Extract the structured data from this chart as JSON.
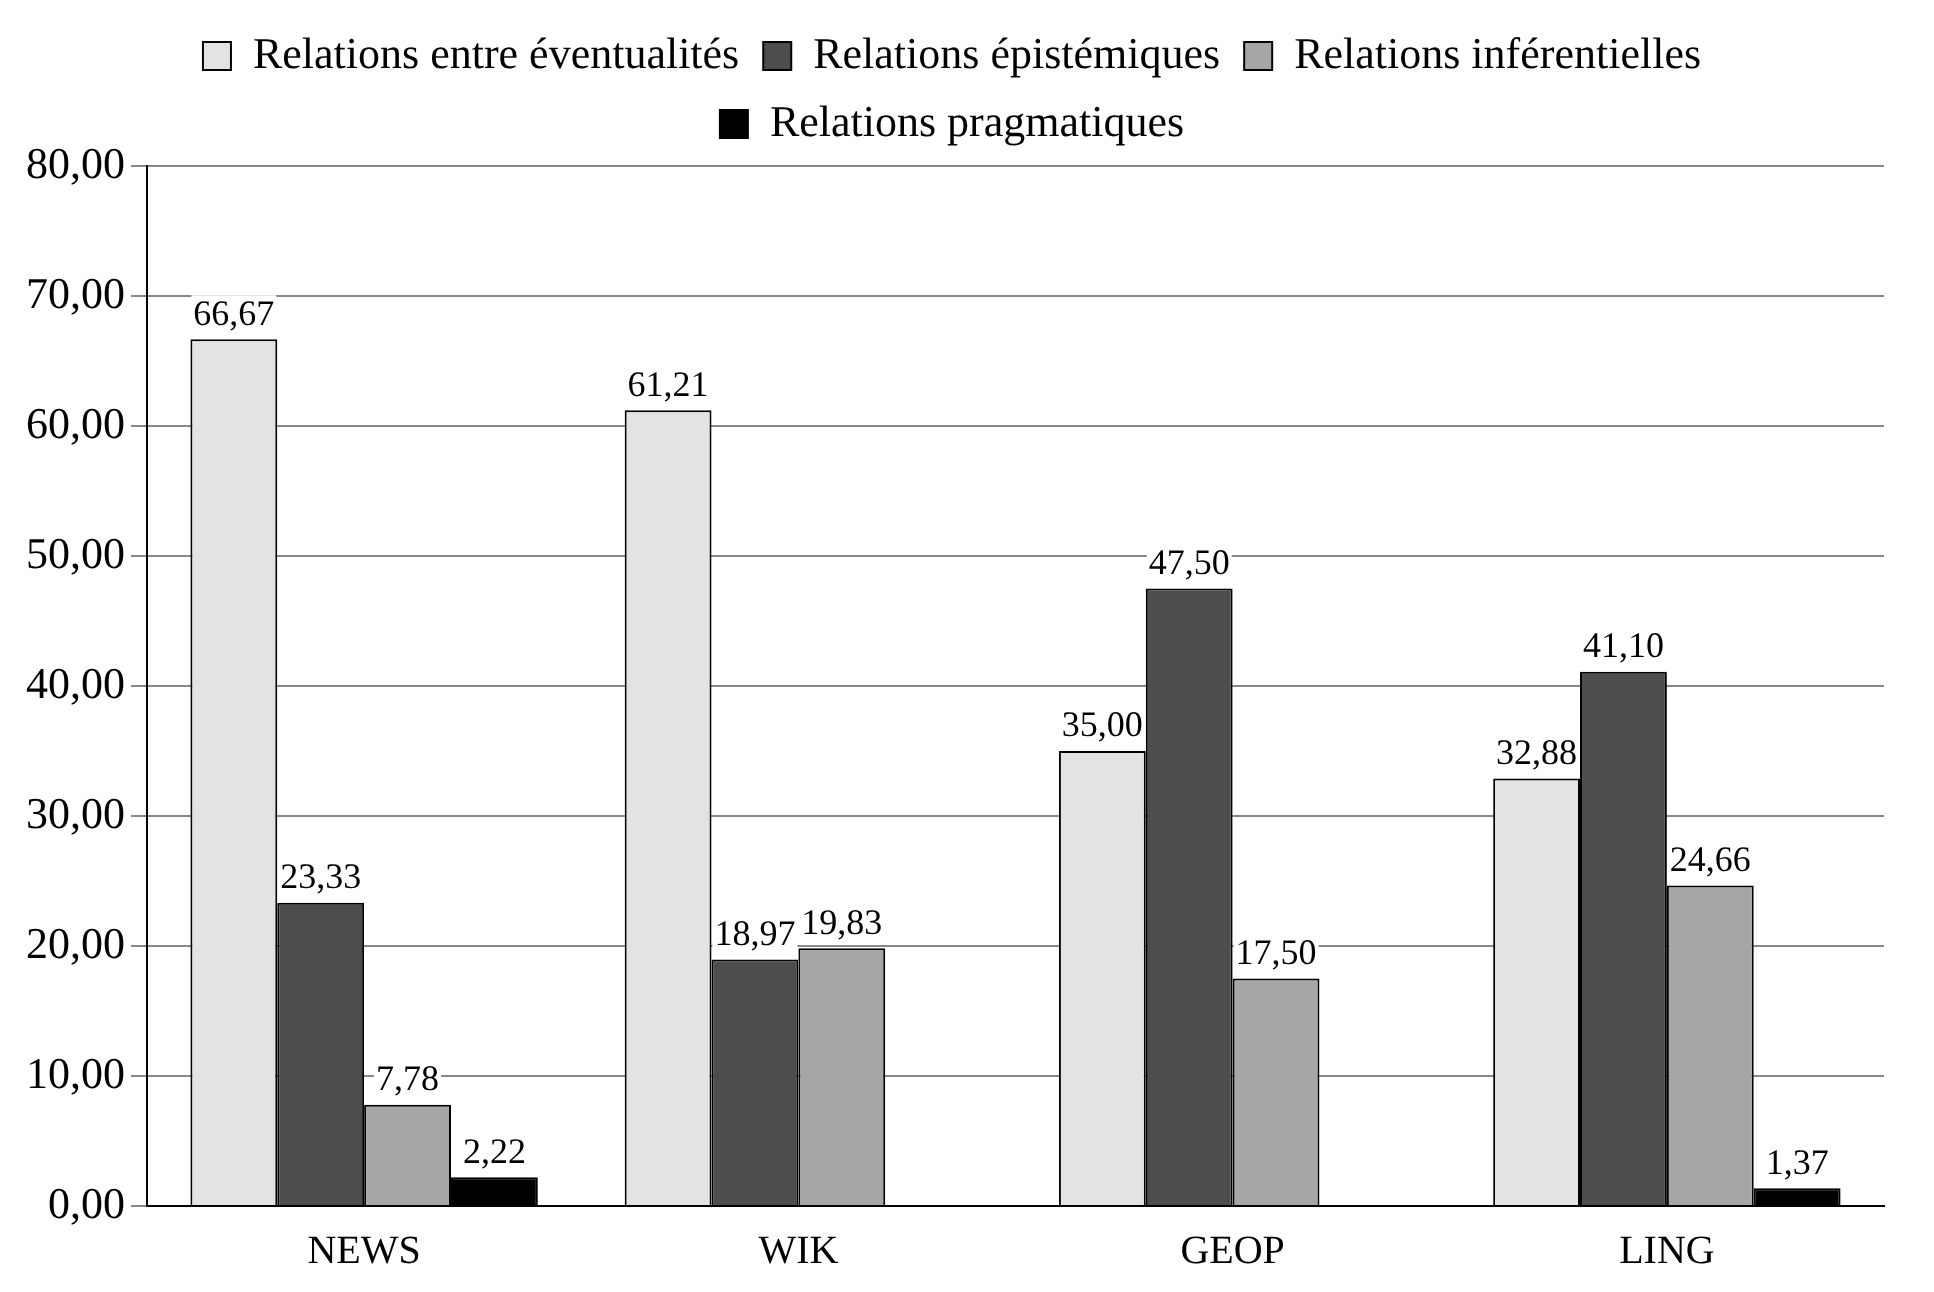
{
  "chart_data": {
    "type": "bar",
    "categories": [
      "NEWS",
      "WIK",
      "GEOP",
      "LING"
    ],
    "series": [
      {
        "name": "Relations entre éventualités",
        "color": "#e3e3e3",
        "values": [
          66.67,
          61.21,
          35.0,
          32.88
        ],
        "value_labels": [
          "66,67",
          "61,21",
          "35,00",
          "32,88"
        ]
      },
      {
        "name": "Relations épistémiques",
        "color": "#4d4d4d",
        "values": [
          23.33,
          18.97,
          47.5,
          41.1
        ],
        "value_labels": [
          "23,33",
          "18,97",
          "47,50",
          "41,10"
        ]
      },
      {
        "name": "Relations inférentielles",
        "color": "#a6a6a6",
        "values": [
          7.78,
          19.83,
          17.5,
          24.66
        ],
        "value_labels": [
          "7,78",
          "19,83",
          "17,50",
          "24,66"
        ]
      },
      {
        "name": "Relations pragmatiques",
        "color": "#000000",
        "values": [
          2.22,
          null,
          null,
          1.37
        ],
        "value_labels": [
          "2,22",
          null,
          null,
          "1,37"
        ]
      }
    ],
    "ylim": [
      0,
      80
    ],
    "yticks": [
      {
        "value": 0,
        "label": "0,00"
      },
      {
        "value": 10,
        "label": "10,00"
      },
      {
        "value": 20,
        "label": "20,00"
      },
      {
        "value": 30,
        "label": "30,00"
      },
      {
        "value": 40,
        "label": "40,00"
      },
      {
        "value": 50,
        "label": "50,00"
      },
      {
        "value": 60,
        "label": "60,00"
      },
      {
        "value": 70,
        "label": "70,00"
      },
      {
        "value": 80,
        "label": "80,00"
      }
    ],
    "grid": "y",
    "legend": "top"
  }
}
